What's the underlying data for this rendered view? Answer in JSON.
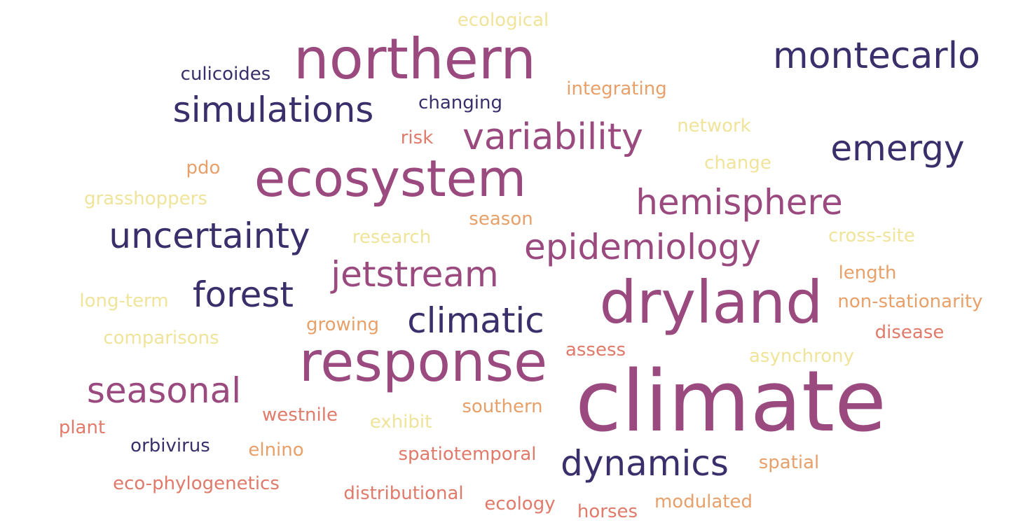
{
  "words": [
    {
      "text": "climate",
      "color": "#9a4a7e"
    },
    {
      "text": "response",
      "color": "#9a4a7e"
    },
    {
      "text": "dryland",
      "color": "#9a4a7e"
    },
    {
      "text": "ecosystem",
      "color": "#9a4a7e"
    },
    {
      "text": "northern",
      "color": "#9a4a7e"
    },
    {
      "text": "montecarlo",
      "color": "#3b2f6b"
    },
    {
      "text": "variability",
      "color": "#9a4a7e"
    },
    {
      "text": "simulations",
      "color": "#3b2f6b"
    },
    {
      "text": "emergy",
      "color": "#3b2f6b"
    },
    {
      "text": "hemisphere",
      "color": "#9a4a7e"
    },
    {
      "text": "uncertainty",
      "color": "#3b2f6b"
    },
    {
      "text": "epidemiology",
      "color": "#9a4a7e"
    },
    {
      "text": "jetstream",
      "color": "#9a4a7e"
    },
    {
      "text": "forest",
      "color": "#3b2f6b"
    },
    {
      "text": "climatic",
      "color": "#3b2f6b"
    },
    {
      "text": "seasonal",
      "color": "#9a4a7e"
    },
    {
      "text": "dynamics",
      "color": "#3b2f6b"
    },
    {
      "text": "ecological",
      "color": "#efe49a"
    },
    {
      "text": "culicoides",
      "color": "#3b2f6b"
    },
    {
      "text": "integrating",
      "color": "#e8a06a"
    },
    {
      "text": "changing",
      "color": "#3b2f6b"
    },
    {
      "text": "network",
      "color": "#efe49a"
    },
    {
      "text": "risk",
      "color": "#e07a6a"
    },
    {
      "text": "pdo",
      "color": "#e8a06a"
    },
    {
      "text": "change",
      "color": "#efe49a"
    },
    {
      "text": "grasshoppers",
      "color": "#efe49a"
    },
    {
      "text": "season",
      "color": "#e8a06a"
    },
    {
      "text": "research",
      "color": "#efe49a"
    },
    {
      "text": "cross-site",
      "color": "#efe49a"
    },
    {
      "text": "length",
      "color": "#e8a06a"
    },
    {
      "text": "long-term",
      "color": "#efe49a"
    },
    {
      "text": "non-stationarity",
      "color": "#e8a06a"
    },
    {
      "text": "growing",
      "color": "#e8a06a"
    },
    {
      "text": "disease",
      "color": "#e07a6a"
    },
    {
      "text": "comparisons",
      "color": "#efe49a"
    },
    {
      "text": "assess",
      "color": "#e07a6a"
    },
    {
      "text": "asynchrony",
      "color": "#efe49a"
    },
    {
      "text": "southern",
      "color": "#e8a06a"
    },
    {
      "text": "westnile",
      "color": "#e07a6a"
    },
    {
      "text": "exhibit",
      "color": "#efe49a"
    },
    {
      "text": "plant",
      "color": "#e07a6a"
    },
    {
      "text": "orbivirus",
      "color": "#3b2f6b"
    },
    {
      "text": "elnino",
      "color": "#e8a06a"
    },
    {
      "text": "spatiotemporal",
      "color": "#e07a6a"
    },
    {
      "text": "spatial",
      "color": "#e8a06a"
    },
    {
      "text": "eco-phylogenetics",
      "color": "#e07a6a"
    },
    {
      "text": "distributional",
      "color": "#e07a6a"
    },
    {
      "text": "ecology",
      "color": "#e07a6a"
    },
    {
      "text": "modulated",
      "color": "#e8a06a"
    },
    {
      "text": "horses",
      "color": "#e07a6a"
    }
  ]
}
